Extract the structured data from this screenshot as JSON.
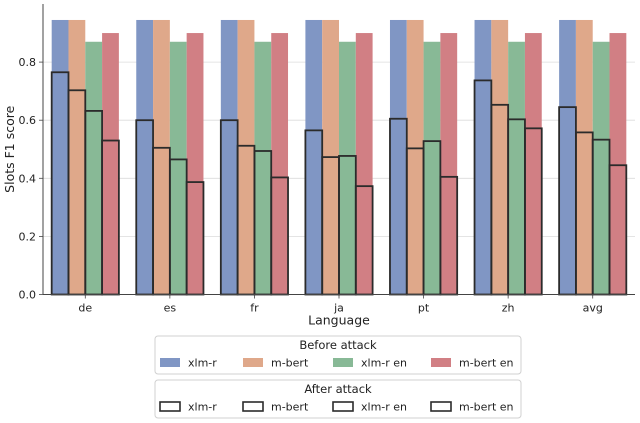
{
  "chart_data": {
    "type": "bar",
    "categories": [
      "de",
      "es",
      "fr",
      "ja",
      "pt",
      "zh",
      "avg"
    ],
    "xlabel": "Language",
    "ylabel": "Slots F1 score",
    "ylim": [
      0,
      1.0
    ],
    "yticks": [
      0.0,
      0.2,
      0.4,
      0.6,
      0.8
    ],
    "ytick_labels": [
      "0.0",
      "0.2",
      "0.4",
      "0.6",
      "0.8"
    ],
    "grid": "horizontal",
    "series_names": [
      "xlm-r",
      "m-bert",
      "xlm-r en",
      "m-bert en"
    ],
    "colors": [
      "#8096c4",
      "#dfa88a",
      "#88b996",
      "#d17f84"
    ],
    "before_attack": [
      {
        "name": "xlm-r",
        "values": [
          0.945,
          0.945,
          0.945,
          0.945,
          0.945,
          0.945,
          0.945
        ]
      },
      {
        "name": "m-bert",
        "values": [
          0.945,
          0.945,
          0.945,
          0.945,
          0.945,
          0.945,
          0.945
        ]
      },
      {
        "name": "xlm-r en",
        "values": [
          0.87,
          0.87,
          0.87,
          0.87,
          0.87,
          0.87,
          0.87
        ]
      },
      {
        "name": "m-bert en",
        "values": [
          0.9,
          0.9,
          0.9,
          0.9,
          0.9,
          0.9,
          0.9
        ]
      }
    ],
    "after_attack": [
      {
        "name": "xlm-r",
        "values": [
          0.765,
          0.6,
          0.6,
          0.565,
          0.605,
          0.737,
          0.645
        ]
      },
      {
        "name": "m-bert",
        "values": [
          0.703,
          0.505,
          0.512,
          0.473,
          0.503,
          0.653,
          0.558
        ]
      },
      {
        "name": "xlm-r en",
        "values": [
          0.632,
          0.465,
          0.494,
          0.477,
          0.528,
          0.603,
          0.533
        ]
      },
      {
        "name": "m-bert en",
        "values": [
          0.53,
          0.387,
          0.403,
          0.373,
          0.405,
          0.572,
          0.445
        ]
      }
    ],
    "legends": [
      {
        "title": "Before attack",
        "style": "filled",
        "entries": [
          "xlm-r",
          "m-bert",
          "xlm-r en",
          "m-bert en"
        ]
      },
      {
        "title": "After attack",
        "style": "outline",
        "entries": [
          "xlm-r",
          "m-bert",
          "xlm-r en",
          "m-bert en"
        ]
      }
    ],
    "legend_placement": "bottom-center"
  }
}
